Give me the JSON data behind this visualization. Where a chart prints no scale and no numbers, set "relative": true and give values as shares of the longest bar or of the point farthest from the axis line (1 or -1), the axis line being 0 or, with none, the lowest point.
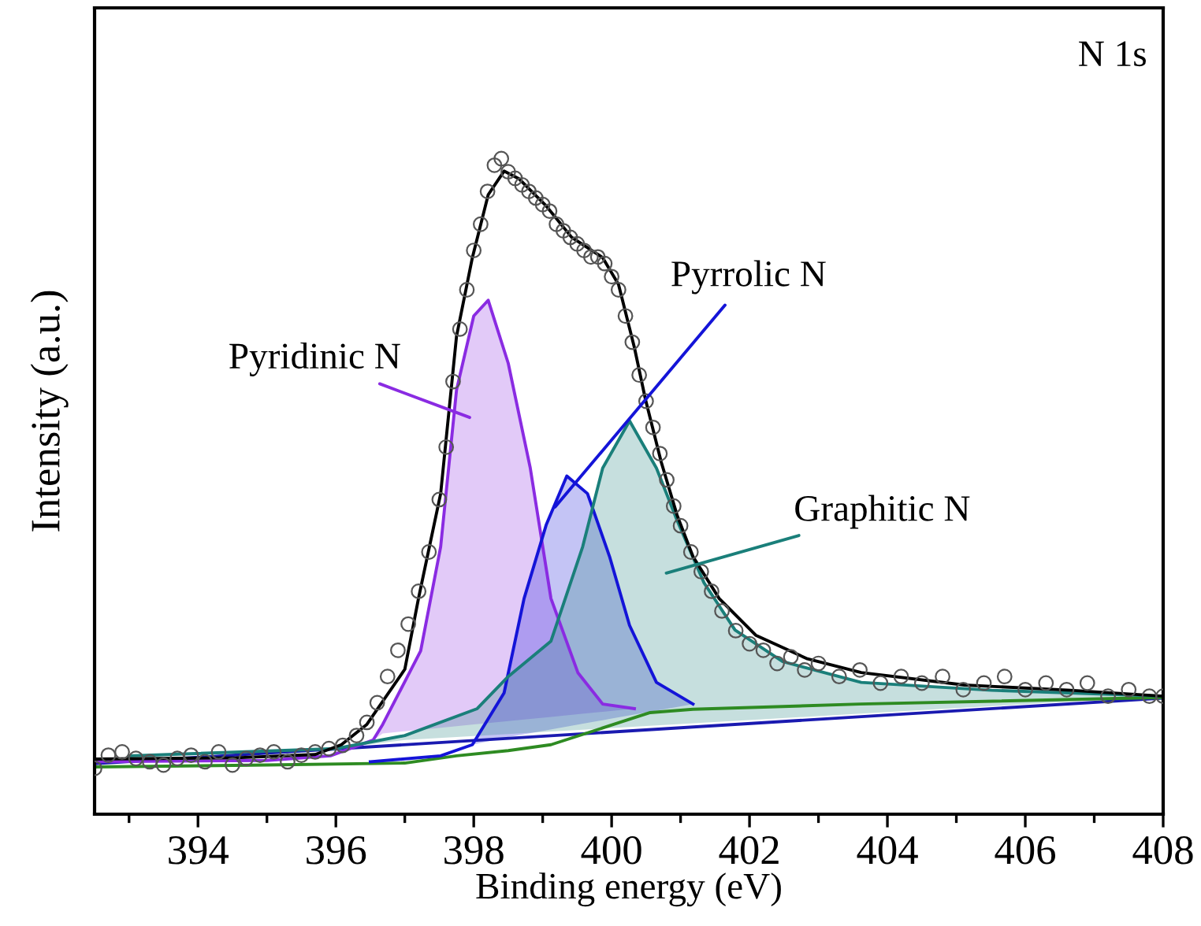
{
  "chart_data": {
    "type": "line",
    "relative": true,
    "xlabel": "Binding energy (eV)",
    "ylabel": "Intensity (a.u.)",
    "xlim": [
      392.5,
      408
    ],
    "xticks": [
      394,
      396,
      398,
      400,
      402,
      404,
      406,
      408
    ],
    "grid": false,
    "legend": false,
    "annotations": [
      "N 1s",
      "Pyridinic N",
      "Pyrrolic N",
      "Graphitic N"
    ],
    "series": [
      {
        "color": "#1a1ab0",
        "x": [
          392.5,
          408
        ],
        "values": [
          0.077,
          0.177
        ]
      },
      {
        "color": "#2e8b22",
        "x": [
          392.5,
          395,
          397,
          397.75,
          398.5,
          399.12,
          400.03,
          400.56,
          401.18,
          403.6,
          408
        ],
        "values": [
          0.072,
          0.075,
          0.078,
          0.089,
          0.097,
          0.106,
          0.137,
          0.155,
          0.16,
          0.168,
          0.178
        ]
      },
      {
        "type": "area",
        "color": "#8a2be2",
        "x": [
          392.5,
          395.0,
          395.92,
          396.54,
          396.68,
          397.23,
          397.52,
          397.75,
          398.0,
          398.21,
          398.5,
          398.82,
          399.12,
          399.51,
          399.87,
          400.33
        ],
        "values": [
          0.08,
          0.082,
          0.089,
          0.113,
          0.137,
          0.249,
          0.408,
          0.647,
          0.76,
          0.784,
          0.688,
          0.528,
          0.329,
          0.216,
          0.168,
          0.161
        ]
      },
      {
        "type": "area",
        "color": "#1414d8",
        "x": [
          396.5,
          397.52,
          397.98,
          398.44,
          398.73,
          399.05,
          399.35,
          399.65,
          399.97,
          400.26,
          400.65,
          401.18
        ],
        "values": [
          0.08,
          0.089,
          0.106,
          0.185,
          0.329,
          0.441,
          0.516,
          0.489,
          0.393,
          0.288,
          0.201,
          0.168
        ]
      },
      {
        "type": "area",
        "color": "#1a7f7a",
        "x": [
          393.0,
          396.0,
          397.0,
          398.05,
          398.5,
          399.12,
          399.58,
          399.87,
          400.26,
          400.65,
          400.95,
          401.34,
          401.79,
          402.48,
          403.62,
          405.51,
          408.0
        ],
        "values": [
          0.089,
          0.1,
          0.12,
          0.161,
          0.21,
          0.264,
          0.408,
          0.528,
          0.6,
          0.528,
          0.448,
          0.353,
          0.281,
          0.233,
          0.201,
          0.189,
          0.18
        ]
      },
      {
        "type": "scatter",
        "marker": "circle",
        "color": "#555555",
        "x": [
          392.5,
          392.7,
          392.9,
          393.1,
          393.3,
          393.5,
          393.7,
          393.9,
          394.1,
          394.3,
          394.5,
          394.7,
          394.9,
          395.1,
          395.3,
          395.5,
          395.7,
          395.9,
          396.1,
          396.3,
          396.45,
          396.6,
          396.75,
          396.9,
          397.05,
          397.2,
          397.35,
          397.5,
          397.6,
          397.7,
          397.8,
          397.9,
          398.0,
          398.1,
          398.2,
          398.3,
          398.4,
          398.5,
          398.6,
          398.7,
          398.8,
          398.9,
          399.0,
          399.1,
          399.2,
          399.3,
          399.4,
          399.5,
          399.6,
          399.7,
          399.8,
          399.9,
          400.0,
          400.1,
          400.2,
          400.3,
          400.4,
          400.5,
          400.6,
          400.7,
          400.8,
          400.9,
          401.0,
          401.15,
          401.3,
          401.45,
          401.6,
          401.8,
          402.0,
          402.2,
          402.4,
          402.6,
          402.8,
          403.0,
          403.3,
          403.6,
          403.9,
          404.2,
          404.5,
          404.8,
          405.1,
          405.4,
          405.7,
          406.0,
          406.3,
          406.6,
          406.9,
          407.2,
          407.5,
          407.8,
          408.0
        ],
        "values": [
          0.07,
          0.09,
          0.095,
          0.085,
          0.08,
          0.075,
          0.085,
          0.09,
          0.08,
          0.095,
          0.075,
          0.085,
          0.09,
          0.095,
          0.08,
          0.09,
          0.095,
          0.1,
          0.105,
          0.12,
          0.14,
          0.17,
          0.21,
          0.25,
          0.29,
          0.34,
          0.4,
          0.48,
          0.56,
          0.66,
          0.74,
          0.8,
          0.86,
          0.9,
          0.95,
          0.99,
          1.0,
          0.98,
          0.97,
          0.96,
          0.95,
          0.94,
          0.93,
          0.92,
          0.9,
          0.89,
          0.88,
          0.87,
          0.86,
          0.85,
          0.85,
          0.84,
          0.82,
          0.8,
          0.76,
          0.72,
          0.67,
          0.63,
          0.59,
          0.55,
          0.51,
          0.47,
          0.44,
          0.4,
          0.37,
          0.34,
          0.31,
          0.28,
          0.26,
          0.25,
          0.23,
          0.24,
          0.22,
          0.23,
          0.21,
          0.22,
          0.2,
          0.21,
          0.2,
          0.21,
          0.19,
          0.2,
          0.21,
          0.19,
          0.2,
          0.19,
          0.2,
          0.18,
          0.19,
          0.18,
          0.18
        ]
      },
      {
        "color": "#000000",
        "x": [
          392.5,
          394.55,
          395.7,
          396.08,
          396.45,
          397.0,
          397.2,
          397.52,
          397.75,
          397.98,
          398.21,
          398.44,
          398.66,
          399.05,
          399.42,
          399.87,
          400.1,
          400.33,
          400.49,
          400.72,
          400.95,
          401.18,
          401.56,
          402.09,
          402.84,
          403.62,
          405.12,
          406.66,
          408.0
        ],
        "values": [
          0.084,
          0.086,
          0.091,
          0.106,
          0.137,
          0.221,
          0.33,
          0.489,
          0.729,
          0.849,
          0.945,
          0.981,
          0.969,
          0.928,
          0.88,
          0.849,
          0.808,
          0.712,
          0.633,
          0.537,
          0.456,
          0.393,
          0.329,
          0.273,
          0.237,
          0.216,
          0.197,
          0.189,
          0.18
        ]
      }
    ]
  }
}
